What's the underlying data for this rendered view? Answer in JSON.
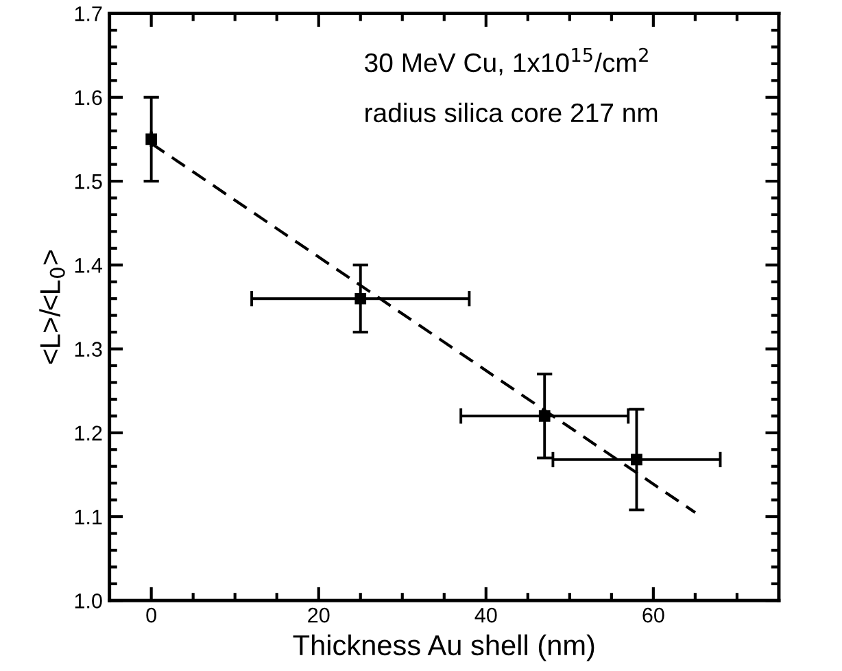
{
  "chart_data": {
    "type": "scatter",
    "xlabel": "Thickness Au shell (nm)",
    "ylabel": "<L>/<L$_{0}$>",
    "annotations": [
      "30 MeV Cu, 1x10$^{15}$/cm$^{2}$",
      "radius silica core 217 nm"
    ],
    "series": [
      {
        "color": "#000000",
        "marker": "square",
        "x": [
          0,
          25,
          47,
          58
        ],
        "values": [
          1.55,
          1.36,
          1.22,
          1.168
        ],
        "errors": [
          0.05,
          0.04,
          0.05,
          0.06
        ],
        "xerrors": [
          null,
          13,
          10,
          10
        ]
      },
      {
        "type": "line",
        "color": "#000000",
        "line_style": "dashed",
        "marker": "none",
        "x": [
          0,
          65
        ],
        "values": [
          1.545,
          1.105
        ]
      }
    ],
    "xlim": [
      -5,
      75
    ],
    "ylim": [
      1.0,
      1.7
    ],
    "xticks": [
      0,
      {
        "value": 5,
        "label": null
      },
      {
        "value": 10,
        "label": null
      },
      {
        "value": 15,
        "label": null
      },
      20,
      {
        "value": 25,
        "label": null
      },
      {
        "value": 30,
        "label": null
      },
      {
        "value": 35,
        "label": null
      },
      40,
      {
        "value": 45,
        "label": null
      },
      {
        "value": 50,
        "label": null
      },
      {
        "value": 55,
        "label": null
      },
      60,
      {
        "value": 65,
        "label": null
      },
      {
        "value": 70,
        "label": null
      }
    ],
    "yticks": [
      {
        "value": 1.0,
        "label": "1.0"
      },
      {
        "value": 1.02,
        "label": null
      },
      {
        "value": 1.04,
        "label": null
      },
      {
        "value": 1.06,
        "label": null
      },
      {
        "value": 1.08,
        "label": null
      },
      1.1,
      {
        "value": 1.12,
        "label": null
      },
      {
        "value": 1.14,
        "label": null
      },
      {
        "value": 1.16,
        "label": null
      },
      {
        "value": 1.18,
        "label": null
      },
      1.2,
      {
        "value": 1.22,
        "label": null
      },
      {
        "value": 1.24,
        "label": null
      },
      {
        "value": 1.26,
        "label": null
      },
      {
        "value": 1.28,
        "label": null
      },
      1.3,
      {
        "value": 1.32,
        "label": null
      },
      {
        "value": 1.34,
        "label": null
      },
      {
        "value": 1.36,
        "label": null
      },
      {
        "value": 1.38,
        "label": null
      },
      1.4,
      {
        "value": 1.42,
        "label": null
      },
      {
        "value": 1.44,
        "label": null
      },
      {
        "value": 1.46,
        "label": null
      },
      {
        "value": 1.48,
        "label": null
      },
      1.5,
      {
        "value": 1.52,
        "label": null
      },
      {
        "value": 1.54,
        "label": null
      },
      {
        "value": 1.56,
        "label": null
      },
      {
        "value": 1.58,
        "label": null
      },
      1.6,
      {
        "value": 1.62,
        "label": null
      },
      {
        "value": 1.64,
        "label": null
      },
      {
        "value": 1.66,
        "label": null
      },
      {
        "value": 1.68,
        "label": null
      },
      {
        "value": 1.7,
        "label": "1.7"
      }
    ],
    "grid": false
  }
}
